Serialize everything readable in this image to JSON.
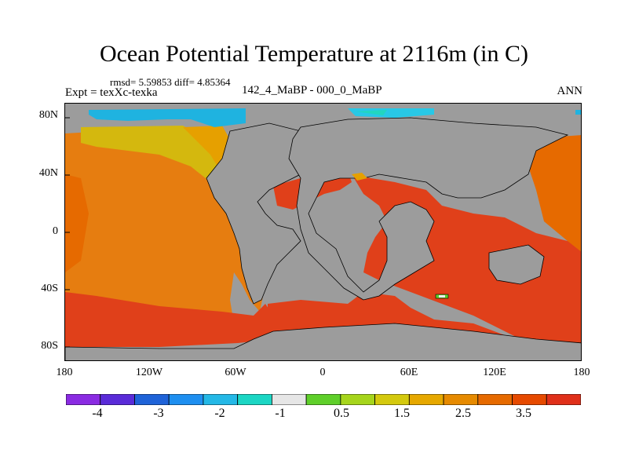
{
  "title": "Ocean Potential Temperature at 2116m (in C)",
  "stats": "rmsd= 5.59853 diff= 4.85364",
  "experiment": "Expt = texXc-texka",
  "difference": "142_4_MaBP - 000_0_MaBP",
  "season": "ANN",
  "lat_labels": [
    "80N",
    "40N",
    "0",
    "40S",
    "80S"
  ],
  "lon_labels": [
    "180",
    "120W",
    "60W",
    "0",
    "60E",
    "120E",
    "180"
  ],
  "colorbar": {
    "colors": [
      "#8a2be2",
      "#5a2bd8",
      "#1f63d8",
      "#1e8ff0",
      "#24b8e6",
      "#1cd6c4",
      "#e6e6e6",
      "#5fcf2a",
      "#a6d51c",
      "#d4c90e",
      "#e6a800",
      "#e68a00",
      "#e66a00",
      "#e64a00",
      "#e0301a"
    ],
    "labels": [
      "-4",
      "-3",
      "-2",
      "-1",
      "0.5",
      "1.5",
      "2.5",
      "3.5"
    ]
  },
  "chart_data": {
    "type": "heatmap",
    "title": "Ocean Potential Temperature at 2116m (in C)",
    "x_range": [
      -180,
      180
    ],
    "y_range": [
      -90,
      90
    ],
    "xlabel": "",
    "ylabel": "",
    "land_color": "#9c9c9c",
    "levels": [
      -4.5,
      -4,
      -3.5,
      -3,
      -2.5,
      -2,
      -1.5,
      -1,
      0,
      0.5,
      1,
      1.5,
      2,
      2.5,
      3,
      3.5
    ]
  }
}
